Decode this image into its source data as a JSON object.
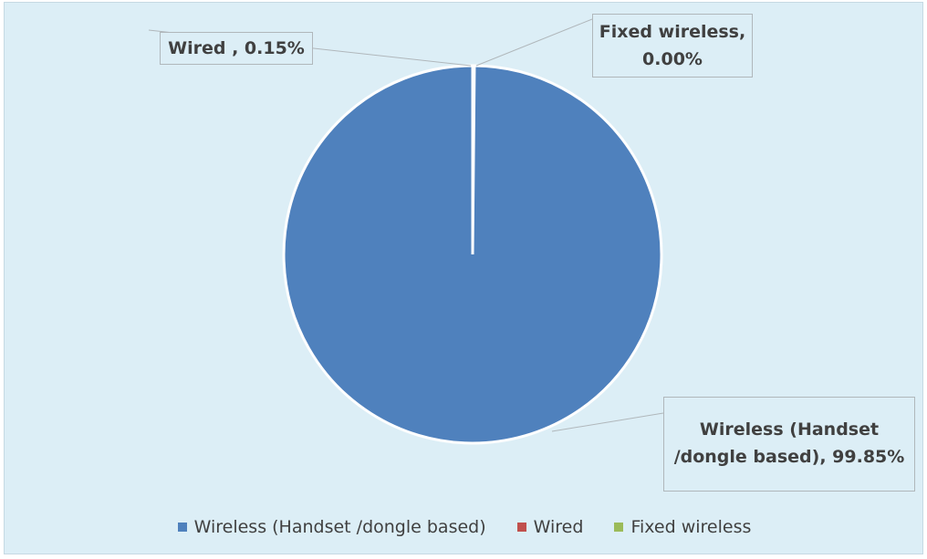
{
  "chart_data": {
    "type": "pie",
    "categories": [
      "Wireless (Handset /dongle based)",
      "Wired",
      "Fixed wireless"
    ],
    "values": [
      99.85,
      0.15,
      0.0
    ],
    "unit": "%",
    "colors": [
      "#4f81bd",
      "#c0504d",
      "#9bbb59"
    ],
    "data_labels": [
      "Wireless (Handset\n/dongle based), 99.85%",
      "Wired , 0.15%",
      "Fixed wireless,\n0.00%"
    ],
    "legend_position": "bottom",
    "background": "#dceef6"
  }
}
